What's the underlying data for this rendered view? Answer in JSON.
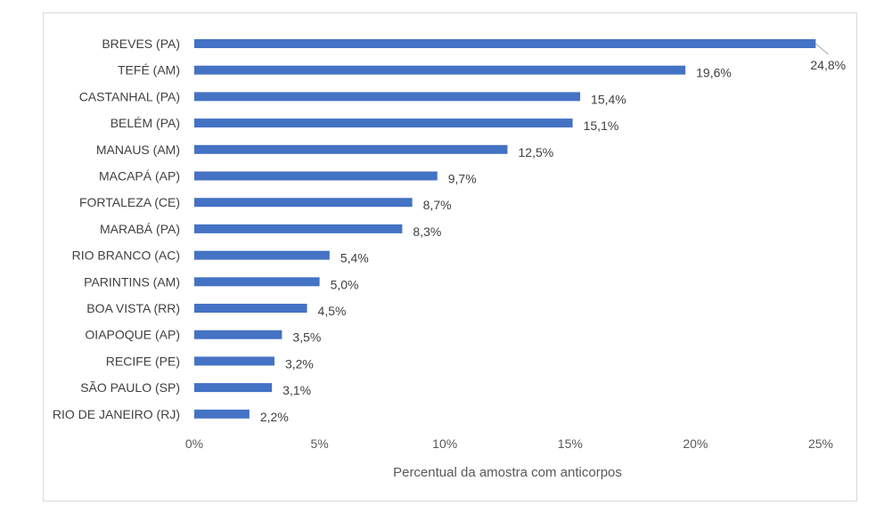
{
  "chart_data": {
    "type": "bar",
    "orientation": "horizontal",
    "categories": [
      "BREVES (PA)",
      "TEFÉ (AM)",
      "CASTANHAL (PA)",
      "BELÉM (PA)",
      "MANAUS (AM)",
      "MACAPÁ (AP)",
      "FORTALEZA (CE)",
      "MARABÁ (PA)",
      "RIO BRANCO (AC)",
      "PARINTINS (AM)",
      "BOA VISTA (RR)",
      "OIAPOQUE (AP)",
      "RECIFE (PE)",
      "SÃO PAULO (SP)",
      "RIO DE JANEIRO (RJ)"
    ],
    "values": [
      24.8,
      19.6,
      15.4,
      15.1,
      12.5,
      9.7,
      8.7,
      8.3,
      5.4,
      5.0,
      4.5,
      3.5,
      3.2,
      3.1,
      2.2
    ],
    "data_labels": [
      "24,8%",
      "19,6%",
      "15,4%",
      "15,1%",
      "12,5%",
      "9,7%",
      "8,7%",
      "8,3%",
      "5,4%",
      "5,0%",
      "4,5%",
      "3,5%",
      "3,2%",
      "3,1%",
      "2,2%"
    ],
    "xlabel": "Percentual da amostra com anticorpos",
    "ylabel": "",
    "xlim": [
      0,
      25
    ],
    "x_ticks": [
      0,
      5,
      10,
      15,
      20,
      25
    ],
    "x_tick_labels": [
      "0%",
      "5%",
      "10%",
      "15%",
      "20%",
      "25%"
    ],
    "grid": false,
    "legend": "none",
    "colors": {
      "bar": "#4472C4",
      "text": "#404040",
      "frame": "#d9d9d9",
      "leader_line": "#a6a6a6"
    }
  }
}
